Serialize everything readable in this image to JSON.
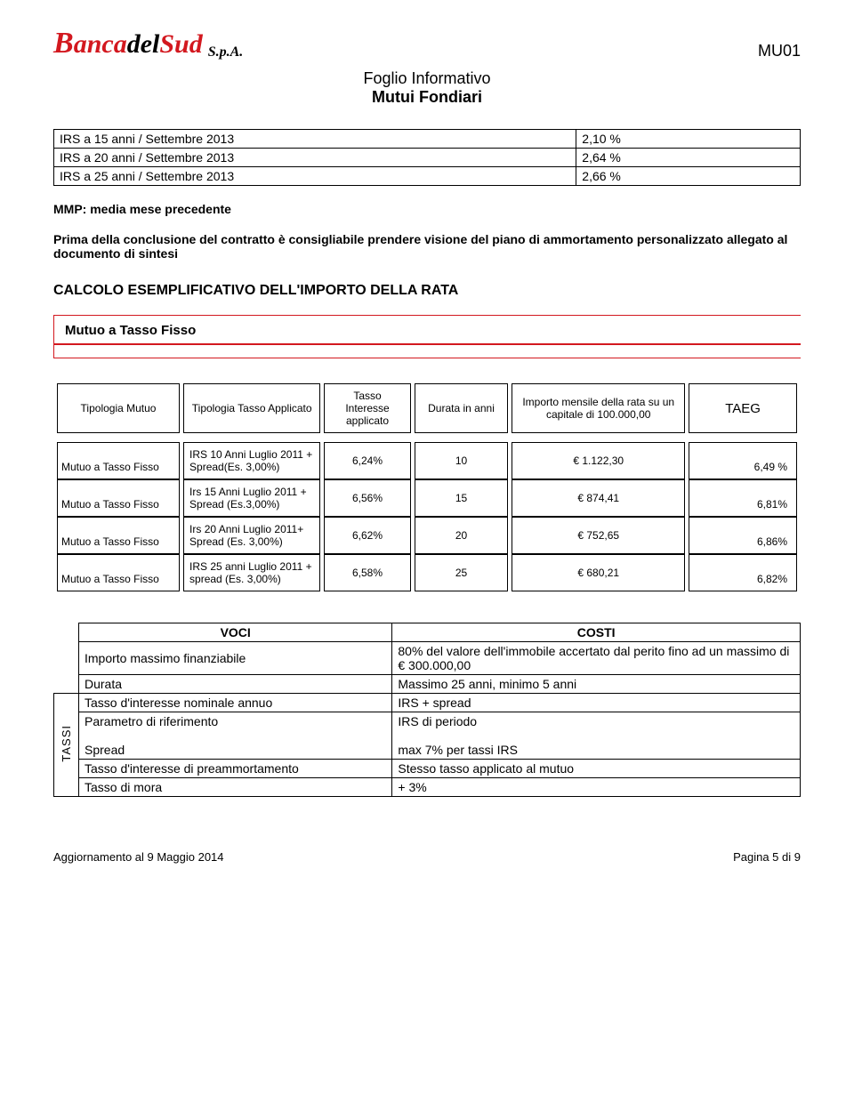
{
  "header": {
    "logo1": "B",
    "logo2": "anca",
    "logo3": "del",
    "logo4": "Sud",
    "spa": "S.p.A.",
    "doccode": "MU01",
    "title1": "Foglio Informativo",
    "title2": "Mutui Fondiari"
  },
  "irs_table": [
    [
      "IRS a 15 anni / Settembre 2013",
      "2,10 %"
    ],
    [
      "IRS a 20 anni / Settembre 2013",
      "2,64 %"
    ],
    [
      "IRS a 25 anni / Settembre 2013",
      "2,66 %"
    ]
  ],
  "mmp": "MMP: media mese precedente",
  "advice": "Prima della conclusione del contratto è consigliabile prendere visione del piano di ammortamento personalizzato allegato al documento di sintesi",
  "section_calc": "CALCOLO ESEMPLIFICATIVO DELL'IMPORTO DELLA RATA",
  "redbox_label": "Mutuo a Tasso Fisso",
  "calc_headers": [
    "Tipologia Mutuo",
    "Tipologia Tasso Applicato",
    "Tasso Interesse applicato",
    "Durata in anni",
    "Importo mensile della rata su un capitale di 100.000,00",
    "TAEG"
  ],
  "calc_rows": [
    [
      "Mutuo a Tasso Fisso",
      "IRS 10 Anni Luglio 2011 + Spread(Es. 3,00%)",
      "6,24%",
      "10",
      "€ 1.122,30",
      "6,49 %"
    ],
    [
      "Mutuo a Tasso Fisso",
      "Irs 15 Anni Luglio 2011 + Spread (Es.3,00%)",
      "6,56%",
      "15",
      "€ 874,41",
      "6,81%"
    ],
    [
      "Mutuo a Tasso Fisso",
      "Irs 20 Anni Luglio 2011+ Spread (Es. 3,00%)",
      "6,62%",
      "20",
      "€ 752,65",
      "6,86%"
    ],
    [
      "Mutuo a Tasso Fisso",
      "IRS 25 anni Luglio 2011 + spread (Es. 3,00%)",
      "6,58%",
      "25",
      "€ 680,21",
      "6,82%"
    ]
  ],
  "voci_headers": [
    "VOCI",
    "COSTI"
  ],
  "voci_rows": [
    [
      "Importo massimo finanziabile",
      "80% del valore dell'immobile accertato dal perito fino ad un massimo di € 300.000,00"
    ],
    [
      "Durata",
      "Massimo 25 anni, minimo 5 anni"
    ],
    [
      "Tasso d'interesse nominale annuo",
      "IRS + spread"
    ],
    [
      "Parametro di riferimento",
      "IRS di periodo"
    ],
    [
      "Spread",
      "max 7% per tassi IRS"
    ],
    [
      "Tasso d'interesse di preammortamento",
      "Stesso tasso applicato al mutuo"
    ],
    [
      "Tasso di mora",
      "+ 3%"
    ]
  ],
  "tassi_label": "TASSI",
  "footer": {
    "left": "Aggiornamento al 9 Maggio 2014",
    "right": "Pagina 5 di 9"
  }
}
